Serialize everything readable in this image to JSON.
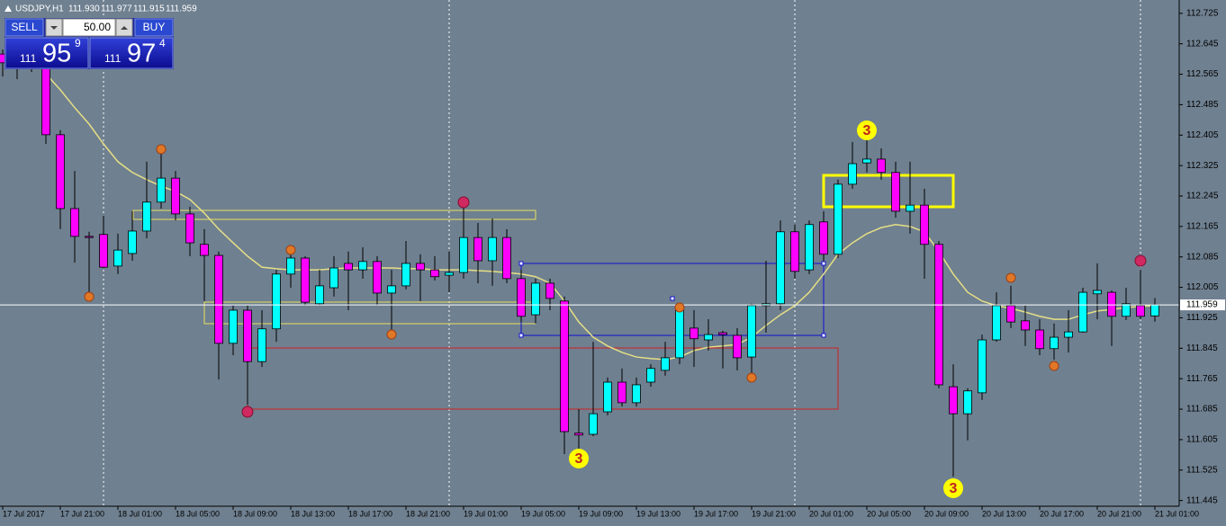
{
  "header": {
    "symbol": "USDJPY,H1",
    "quote": [
      "111.930",
      "111.977",
      "111.915",
      "111.959"
    ]
  },
  "trade_panel": {
    "sell": "SELL",
    "lot": "50.00",
    "buy": "BUY",
    "bid": {
      "big_figure": "111",
      "pips": "95",
      "fraction": "9"
    },
    "ask": {
      "big_figure": "111",
      "pips": "97",
      "fraction": "4"
    }
  },
  "chart_data": {
    "type": "candlestick",
    "categories": [
      "17 Jul 2017",
      null,
      null,
      null,
      "17 Jul 21:00",
      null,
      null,
      null,
      "18 Jul 01:00",
      null,
      null,
      null,
      "18 Jul 05:00",
      null,
      null,
      null,
      "18 Jul 09:00",
      null,
      null,
      null,
      "18 Jul 13:00",
      null,
      null,
      null,
      "18 Jul 17:00",
      null,
      null,
      null,
      "18 Jul 21:00",
      null,
      null,
      null,
      "19 Jul 01:00",
      null,
      null,
      null,
      "19 Jul 05:00",
      null,
      null,
      null,
      "19 Jul 09:00",
      null,
      null,
      null,
      "19 Jul 13:00",
      null,
      null,
      null,
      "19 Jul 17:00",
      null,
      null,
      null,
      "19 Jul 21:00",
      null,
      null,
      null,
      "20 Jul 01:00",
      null,
      null,
      null,
      "20 Jul 05:00",
      null,
      null,
      null,
      "20 Jul 09:00",
      null,
      null,
      null,
      "20 Jul 13:00",
      null,
      null,
      null,
      "20 Jul 17:00",
      null,
      null,
      null,
      "20 Jul 21:00",
      null,
      null,
      null,
      "21 Jul 01:00"
    ],
    "open": [
      112.618,
      112.595,
      112.606,
      112.583,
      112.406,
      112.212,
      112.139,
      112.144,
      112.061,
      112.094,
      112.153,
      112.229,
      112.292,
      112.198,
      112.118,
      112.089,
      111.858,
      111.945,
      111.81,
      111.896,
      112.04,
      112.082,
      111.962,
      112.004,
      112.068,
      112.051,
      112.073,
      111.99,
      112.009,
      112.068,
      112.051,
      112.037,
      112.044,
      112.136,
      112.075,
      112.136,
      112.028,
      111.933,
      112.016,
      111.969,
      111.622,
      111.619,
      111.678,
      111.756,
      111.702,
      111.756,
      111.787,
      111.82,
      111.898,
      111.867,
      111.886,
      111.879,
      111.822,
      111.957,
      111.962,
      112.151,
      112.051,
      112.177,
      112.092,
      112.276,
      112.332,
      112.342,
      112.307,
      112.205,
      112.221,
      112.118,
      111.744,
      111.673,
      111.728,
      111.867,
      111.957,
      111.917,
      111.893,
      111.844,
      111.874,
      111.888,
      111.988,
      111.992,
      111.929,
      111.957,
      111.93
    ],
    "high": [
      112.63,
      112.63,
      112.63,
      112.599,
      112.418,
      112.311,
      112.151,
      112.193,
      112.146,
      112.205,
      112.335,
      112.358,
      112.311,
      112.217,
      112.158,
      112.099,
      111.957,
      111.957,
      111.945,
      112.051,
      112.094,
      112.087,
      112.051,
      112.087,
      112.099,
      112.11,
      112.087,
      112.051,
      112.127,
      112.092,
      112.087,
      112.099,
      112.229,
      112.174,
      112.186,
      112.158,
      112.051,
      112.028,
      112.028,
      111.981,
      111.685,
      111.862,
      111.768,
      111.792,
      111.768,
      111.803,
      111.862,
      111.962,
      111.945,
      111.921,
      111.891,
      111.898,
      111.962,
      112.075,
      112.181,
      112.17,
      112.181,
      112.205,
      112.288,
      112.387,
      112.394,
      112.37,
      112.335,
      112.335,
      112.264,
      112.127,
      111.803,
      111.74,
      111.881,
      111.992,
      112.009,
      111.957,
      111.921,
      111.91,
      111.945,
      112.004,
      112.068,
      111.997,
      112.004,
      112.051,
      111.977
    ],
    "low": [
      112.559,
      112.552,
      112.571,
      112.382,
      112.158,
      112.07,
      111.992,
      112.056,
      112.04,
      112.075,
      112.134,
      112.212,
      112.181,
      112.087,
      111.969,
      111.763,
      111.827,
      111.697,
      111.796,
      111.862,
      112.004,
      111.957,
      111.957,
      111.981,
      111.945,
      112.028,
      111.957,
      111.886,
      112.0,
      111.969,
      112.023,
      111.992,
      112.028,
      112.016,
      112.009,
      112.016,
      111.914,
      111.91,
      111.945,
      111.567,
      111.567,
      111.614,
      111.669,
      111.692,
      111.692,
      111.744,
      111.773,
      111.803,
      111.796,
      111.839,
      111.792,
      111.787,
      111.773,
      111.886,
      111.945,
      112.028,
      112.04,
      112.063,
      112.082,
      112.264,
      112.307,
      112.288,
      112.188,
      112.146,
      112.028,
      111.74,
      111.508,
      111.603,
      111.709,
      111.862,
      111.898,
      111.851,
      111.827,
      111.815,
      111.834,
      111.886,
      111.921,
      111.851,
      111.919,
      111.921,
      111.915
    ],
    "close": [
      112.595,
      112.606,
      112.583,
      112.406,
      112.212,
      112.139,
      112.136,
      112.058,
      112.103,
      112.153,
      112.229,
      112.292,
      112.198,
      112.122,
      112.089,
      111.858,
      111.945,
      111.81,
      111.896,
      112.04,
      112.082,
      111.966,
      112.009,
      112.056,
      112.051,
      112.073,
      111.99,
      112.009,
      112.068,
      112.051,
      112.033,
      112.044,
      112.136,
      112.075,
      112.136,
      112.028,
      111.929,
      112.016,
      111.976,
      111.626,
      111.617,
      111.673,
      111.756,
      111.702,
      111.749,
      111.792,
      111.82,
      111.945,
      111.87,
      111.881,
      111.881,
      111.82,
      111.957,
      111.962,
      112.151,
      112.047,
      112.17,
      112.092,
      112.276,
      112.33,
      112.342,
      112.307,
      112.205,
      112.221,
      112.118,
      111.749,
      111.673,
      111.733,
      111.867,
      111.957,
      111.914,
      111.893,
      111.844,
      111.874,
      111.888,
      111.992,
      111.997,
      111.929,
      111.962,
      111.929,
      111.959
    ],
    "colors": {
      "up": "#00ffff",
      "down": "#ff00ff",
      "wick": "#000000"
    },
    "ma": {
      "color": "#e6df86",
      "values": [
        null,
        null,
        null,
        112.566,
        112.524,
        112.477,
        112.434,
        112.382,
        112.335,
        112.307,
        112.288,
        112.271,
        112.257,
        112.236,
        112.2,
        112.158,
        112.122,
        112.087,
        112.058,
        112.054,
        112.051,
        112.051,
        112.051,
        112.054,
        112.056,
        112.056,
        112.056,
        112.056,
        112.054,
        112.054,
        112.051,
        112.051,
        112.051,
        112.049,
        112.047,
        112.044,
        112.04,
        112.033,
        112.016,
        111.969,
        111.914,
        111.874,
        111.851,
        111.834,
        111.822,
        111.818,
        111.815,
        111.822,
        111.839,
        111.848,
        111.851,
        111.855,
        111.874,
        111.905,
        111.933,
        111.957,
        111.992,
        112.04,
        112.092,
        112.122,
        112.146,
        112.162,
        112.17,
        112.165,
        112.151,
        112.099,
        112.04,
        111.992,
        111.969,
        111.957,
        111.95,
        111.94,
        111.929,
        111.921,
        111.921,
        111.933,
        111.943,
        111.947,
        111.952,
        111.955,
        111.957
      ]
    },
    "ylim": [
      111.43,
      112.76
    ],
    "yticks": [
      112.725,
      112.645,
      112.565,
      112.485,
      112.405,
      112.325,
      112.245,
      112.165,
      112.085,
      112.005,
      111.925,
      111.845,
      111.765,
      111.685,
      111.605,
      111.525,
      111.445
    ],
    "annotations": [
      "3",
      "3",
      "3"
    ]
  }
}
